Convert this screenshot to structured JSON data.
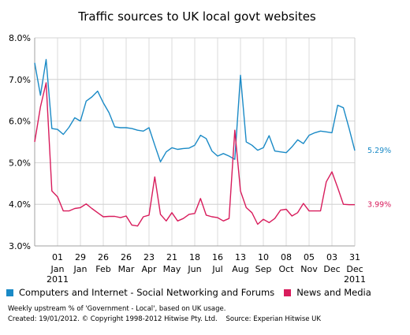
{
  "chart_data": {
    "type": "line",
    "title": "Traffic sources to UK local govt websites",
    "xlabel": "",
    "ylabel": "",
    "ylim": [
      3.0,
      8.0
    ],
    "yticks": [
      "3.0%",
      "4.0%",
      "5.0%",
      "6.0%",
      "7.0%",
      "8.0%"
    ],
    "xticks": [
      {
        "day": "01",
        "month": "Jan",
        "year": "2011"
      },
      {
        "day": "29",
        "month": "Jan",
        "year": ""
      },
      {
        "day": "26",
        "month": "Feb",
        "year": ""
      },
      {
        "day": "26",
        "month": "Mar",
        "year": ""
      },
      {
        "day": "23",
        "month": "Apr",
        "year": ""
      },
      {
        "day": "21",
        "month": "May",
        "year": ""
      },
      {
        "day": "18",
        "month": "Jun",
        "year": ""
      },
      {
        "day": "16",
        "month": "Jul",
        "year": ""
      },
      {
        "day": "13",
        "month": "Aug",
        "year": ""
      },
      {
        "day": "10",
        "month": "Sep",
        "year": ""
      },
      {
        "day": "08",
        "month": "Oct",
        "year": ""
      },
      {
        "day": "05",
        "month": "Nov",
        "year": ""
      },
      {
        "day": "03",
        "month": "Dec",
        "year": ""
      },
      {
        "day": "31",
        "month": "Dec",
        "year": "2011"
      }
    ],
    "x": [
      "2010-12-04",
      "2010-12-11",
      "2010-12-18",
      "2010-12-25",
      "2011-01-01",
      "2011-01-08",
      "2011-01-15",
      "2011-01-22",
      "2011-01-29",
      "2011-02-05",
      "2011-02-12",
      "2011-02-19",
      "2011-02-26",
      "2011-03-05",
      "2011-03-12",
      "2011-03-19",
      "2011-03-26",
      "2011-04-02",
      "2011-04-09",
      "2011-04-16",
      "2011-04-23",
      "2011-04-30",
      "2011-05-07",
      "2011-05-14",
      "2011-05-21",
      "2011-05-28",
      "2011-06-04",
      "2011-06-11",
      "2011-06-18",
      "2011-06-25",
      "2011-07-02",
      "2011-07-09",
      "2011-07-16",
      "2011-07-23",
      "2011-07-30",
      "2011-08-06",
      "2011-08-13",
      "2011-08-20",
      "2011-08-27",
      "2011-09-03",
      "2011-09-10",
      "2011-09-17",
      "2011-09-24",
      "2011-10-01",
      "2011-10-08",
      "2011-10-15",
      "2011-10-22",
      "2011-10-29",
      "2011-11-05",
      "2011-11-12",
      "2011-11-19",
      "2011-11-26",
      "2011-12-03",
      "2011-12-10",
      "2011-12-17",
      "2011-12-24",
      "2011-12-31"
    ],
    "series": [
      {
        "name": "Computers and Internet - Social Networking and Forums",
        "color": "#1a8ac6",
        "end_label": "5.29%",
        "values": [
          7.4,
          6.62,
          7.48,
          5.82,
          5.8,
          5.68,
          5.85,
          6.08,
          6.0,
          6.48,
          6.58,
          6.72,
          6.44,
          6.2,
          5.86,
          5.84,
          5.84,
          5.82,
          5.78,
          5.76,
          5.84,
          5.42,
          5.02,
          5.26,
          5.36,
          5.32,
          5.34,
          5.35,
          5.42,
          5.66,
          5.58,
          5.28,
          5.16,
          5.22,
          5.16,
          5.08,
          7.1,
          5.5,
          5.42,
          5.3,
          5.36,
          5.65,
          5.28,
          5.26,
          5.24,
          5.38,
          5.55,
          5.46,
          5.66,
          5.72,
          5.76,
          5.74,
          5.72,
          6.38,
          6.32,
          5.82,
          5.29
        ]
      },
      {
        "name": "News and Media",
        "color": "#d81c5c",
        "end_label": "3.99%",
        "values": [
          5.5,
          6.34,
          6.92,
          4.32,
          4.18,
          3.84,
          3.84,
          3.9,
          3.92,
          4.01,
          3.9,
          3.8,
          3.7,
          3.71,
          3.71,
          3.68,
          3.72,
          3.5,
          3.48,
          3.7,
          3.74,
          4.66,
          3.76,
          3.6,
          3.8,
          3.6,
          3.66,
          3.76,
          3.78,
          4.14,
          3.74,
          3.7,
          3.68,
          3.6,
          3.66,
          5.78,
          4.32,
          3.92,
          3.8,
          3.52,
          3.64,
          3.56,
          3.66,
          3.86,
          3.88,
          3.72,
          3.8,
          4.02,
          3.84,
          3.84,
          3.84,
          4.54,
          4.78,
          4.4,
          4.0,
          3.99,
          3.99
        ]
      }
    ],
    "grid": true,
    "legend": "bottom"
  },
  "footer": {
    "note": "Weekly upstream % of 'Government - Local', based on UK usage.",
    "credit": "Created: 19/01/2012. © Copyright 1998-2012 Hitwise Pty. Ltd.    Source: Experian Hitwise UK"
  }
}
